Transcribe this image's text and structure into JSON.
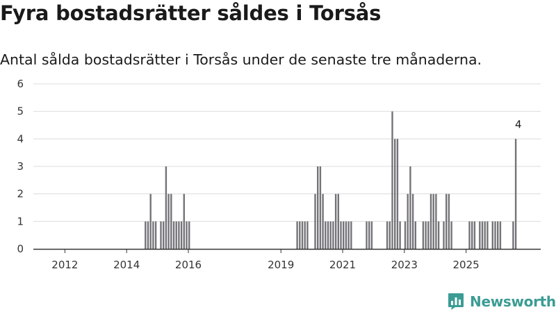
{
  "header": {
    "title": "Fyra bostadsrätter såldes i Torsås",
    "subtitle": "Antal sålda bostadsrätter i Torsås under de senaste tre månaderna."
  },
  "brand": {
    "name": "Newsworthy",
    "icon": "bar-chart-logo-icon",
    "color": "#3b9c94"
  },
  "chart_data": {
    "type": "bar",
    "title": "Fyra bostadsrätter såldes i Torsås",
    "subtitle": "Antal sålda bostadsrätter i Torsås under de senaste tre månaderna.",
    "xlabel": "",
    "ylabel": "",
    "ylim": [
      0,
      6
    ],
    "yticks": [
      0,
      1,
      2,
      3,
      4,
      5,
      6
    ],
    "xticks": [
      "2012",
      "2014",
      "2016",
      "2019",
      "2021",
      "2023",
      "2025"
    ],
    "grid": true,
    "bar_color": "#747378",
    "highlight_color": "#2aa198",
    "values": [
      0,
      0,
      0,
      0,
      0,
      0,
      0,
      0,
      0,
      0,
      0,
      0,
      0,
      0,
      0,
      0,
      0,
      0,
      0,
      0,
      0,
      0,
      0,
      0,
      0,
      0,
      0,
      0,
      0,
      0,
      0,
      0,
      0,
      0,
      0,
      0,
      0,
      0,
      0,
      0,
      0,
      0,
      0,
      1,
      1,
      2,
      1,
      1,
      0,
      1,
      1,
      3,
      2,
      2,
      1,
      1,
      1,
      1,
      2,
      1,
      1,
      0,
      0,
      0,
      0,
      0,
      0,
      0,
      0,
      0,
      0,
      0,
      0,
      0,
      0,
      0,
      0,
      0,
      0,
      0,
      0,
      0,
      0,
      0,
      0,
      0,
      0,
      0,
      0,
      0,
      0,
      0,
      0,
      0,
      0,
      0,
      0,
      0,
      0,
      0,
      0,
      0,
      1,
      1,
      1,
      1,
      1,
      0,
      0,
      2,
      3,
      3,
      2,
      1,
      1,
      1,
      1,
      2,
      2,
      1,
      1,
      1,
      1,
      1,
      0,
      0,
      0,
      0,
      0,
      1,
      1,
      1,
      0,
      0,
      0,
      0,
      0,
      1,
      1,
      5,
      4,
      4,
      1,
      0,
      1,
      2,
      3,
      2,
      1,
      0,
      0,
      1,
      1,
      1,
      2,
      2,
      2,
      1,
      0,
      1,
      2,
      2,
      1,
      0,
      0,
      0,
      0,
      0,
      0,
      1,
      1,
      1,
      0,
      1,
      1,
      1,
      1,
      0,
      1,
      1,
      1,
      1,
      0,
      0,
      0,
      0,
      1,
      4
    ],
    "highlight_index": 188,
    "annotation": {
      "label": "4",
      "value": 4
    }
  }
}
